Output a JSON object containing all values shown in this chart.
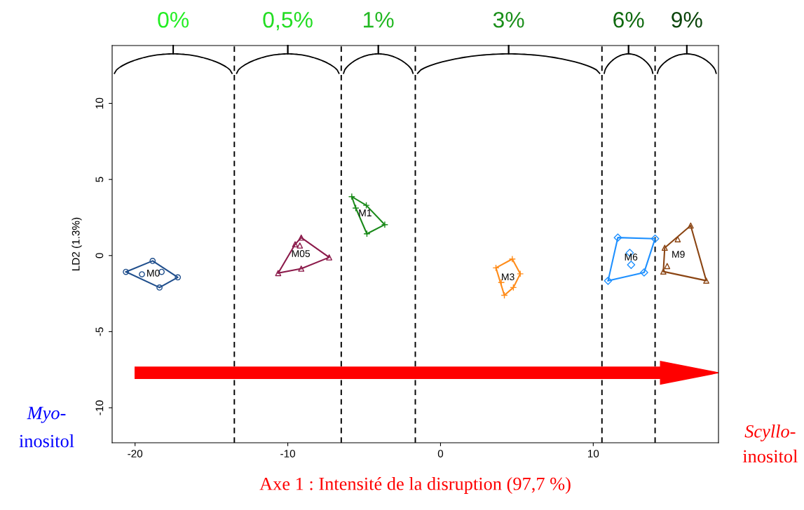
{
  "chart_data": {
    "type": "scatter",
    "xlabel": "Axe 1 : Intensité de la disruption (97,7 %)",
    "ylabel": "LD2 (1.3%)",
    "xlim": [
      -21.5,
      18.2
    ],
    "ylim": [
      -12.3,
      13.8
    ],
    "xticks": [
      -20,
      -10,
      0,
      10
    ],
    "yticks": [
      -10,
      -5,
      0,
      5,
      10
    ],
    "grid": false,
    "legend": false,
    "series": [
      {
        "name": "M0",
        "color": "#1f4e8c",
        "marker": "circle",
        "x": [
          -20.6,
          -18.85,
          -17.2,
          -18.4,
          -19.55,
          -18.26
        ],
        "values": [
          -1.07,
          -0.35,
          -1.43,
          -2.1,
          -1.23,
          -1.07
        ]
      },
      {
        "name": "M05",
        "color": "#8b1a4a",
        "marker": "triangle",
        "x": [
          -10.63,
          -9.12,
          -9.52,
          -9.21,
          -7.29,
          -9.12
        ],
        "values": [
          -1.15,
          1.18,
          0.74,
          0.66,
          -0.12,
          -0.86
        ]
      },
      {
        "name": "M1",
        "color": "#1a8a1a",
        "marker": "cross",
        "x": [
          -5.81,
          -5.55,
          -4.86,
          -3.65,
          -4.82
        ],
        "values": [
          3.87,
          3.12,
          3.3,
          2.03,
          1.43
        ]
      },
      {
        "name": "M3",
        "color": "#ff8c1a",
        "marker": "cross",
        "x": [
          3.63,
          4.7,
          5.22,
          4.77,
          4.18,
          3.98
        ],
        "values": [
          -0.81,
          -0.23,
          -1.2,
          -2.1,
          -2.61,
          -1.77
        ]
      },
      {
        "name": "M6",
        "color": "#1e90ff",
        "marker": "diamond",
        "x": [
          11.61,
          14.05,
          13.33,
          10.97,
          12.39,
          12.48
        ],
        "values": [
          1.18,
          1.11,
          -1.11,
          -1.66,
          0.18,
          -0.61
        ]
      },
      {
        "name": "M9",
        "color": "#8b4513",
        "marker": "triangle",
        "x": [
          16.38,
          15.53,
          14.68,
          14.59,
          14.84,
          17.4
        ],
        "values": [
          1.97,
          1.07,
          0.51,
          -1.05,
          -0.69,
          -1.65
        ]
      }
    ],
    "ref_lines": [
      {
        "axis": "x",
        "value": -13.5,
        "color": "#000000",
        "line_style": "dashed"
      },
      {
        "axis": "x",
        "value": -6.5,
        "color": "#000000",
        "line_style": "dashed"
      },
      {
        "axis": "x",
        "value": -1.65,
        "color": "#000000",
        "line_style": "dashed"
      },
      {
        "axis": "x",
        "value": 10.57,
        "color": "#000000",
        "line_style": "dashed"
      },
      {
        "axis": "x",
        "value": 14.05,
        "color": "#000000",
        "line_style": "dashed"
      }
    ],
    "annotations": [
      "0%",
      "0,5%",
      "1%",
      "3%",
      "6%",
      "9%",
      "Myo-",
      "inositol",
      "Scyllo-",
      "inositol"
    ]
  }
}
